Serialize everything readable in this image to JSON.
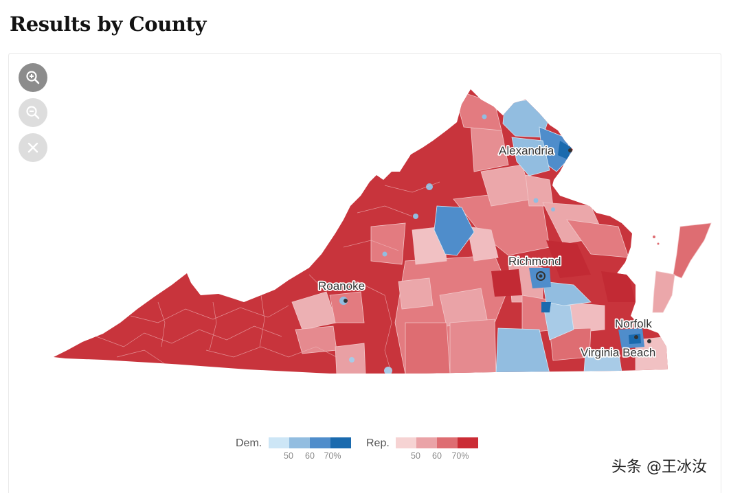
{
  "title": "Results by County",
  "controls": [
    {
      "name": "zoom-in-button",
      "icon": "zoom-in-icon",
      "state": "active"
    },
    {
      "name": "zoom-out-button",
      "icon": "zoom-out-icon",
      "state": "disabled"
    },
    {
      "name": "reset-button",
      "icon": "close-icon",
      "state": "disabled"
    }
  ],
  "cities": [
    {
      "label": "Alexandria"
    },
    {
      "label": "Richmond"
    },
    {
      "label": "Roanoke"
    },
    {
      "label": "Norfolk"
    },
    {
      "label": "Virginia Beach"
    }
  ],
  "legend": {
    "dem": {
      "label": "Dem.",
      "colors": [
        "#cde6f6",
        "#92bde0",
        "#4f8dcb",
        "#1a6aae"
      ],
      "ticks": [
        "50",
        "60",
        "70%"
      ]
    },
    "rep": {
      "label": "Rep.",
      "colors": [
        "#f6d3d3",
        "#eaa3a7",
        "#de6d72",
        "#cb2c35"
      ],
      "ticks": [
        "50",
        "60",
        "70%"
      ]
    }
  },
  "watermark": "头条 @王冰汝"
}
